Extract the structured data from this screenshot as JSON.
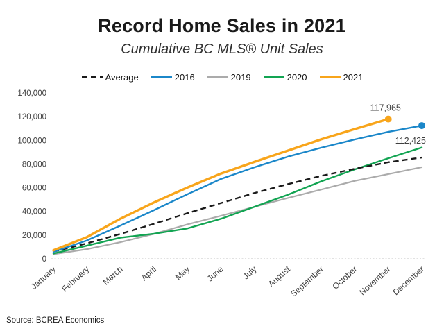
{
  "chart_data": {
    "type": "line",
    "title": "Record Home Sales in 2021",
    "subtitle": "Cumulative BC MLS® Unit Sales",
    "source": "Source: BCREA Economics",
    "xlabel": "",
    "ylabel": "",
    "ylim": [
      0,
      140000
    ],
    "grid": "zero-line-only",
    "legend_position": "top",
    "categories": [
      "January",
      "February",
      "March",
      "April",
      "May",
      "June",
      "July",
      "August",
      "September",
      "October",
      "November",
      "December"
    ],
    "y_ticks": [
      {
        "label": "140,000",
        "value": 140000
      },
      {
        "label": "120,000",
        "value": 120000
      },
      {
        "label": "100,000",
        "value": 100000
      },
      {
        "label": "80,000",
        "value": 80000
      },
      {
        "label": "60,000",
        "value": 60000
      },
      {
        "label": "40,000",
        "value": 40000
      },
      {
        "label": "20,000",
        "value": 20000
      },
      {
        "label": "0",
        "value": 0
      }
    ],
    "series": [
      {
        "name": "Average",
        "color": "#1a1a1a",
        "style": "dashed",
        "width": 2.4,
        "values": [
          6000,
          13000,
          21000,
          29500,
          38500,
          47000,
          55500,
          63000,
          70000,
          76000,
          81500,
          85500
        ]
      },
      {
        "name": "2016",
        "color": "#1b87c9",
        "style": "solid",
        "width": 2.4,
        "values": [
          5831,
          15468,
          28028,
          40997,
          54455,
          67361,
          77261,
          86206,
          93797,
          100741,
          107160,
          112425
        ],
        "end_marker": {
          "label": "112,425",
          "position": "below"
        }
      },
      {
        "name": "2019",
        "color": "#ababab",
        "style": "solid",
        "width": 2.2,
        "values": [
          3829,
          8120,
          14000,
          21000,
          29000,
          36300,
          43800,
          51300,
          58500,
          65800,
          71500,
          77331
        ]
      },
      {
        "name": "2020",
        "color": "#12a452",
        "style": "solid",
        "width": 2.4,
        "values": [
          4426,
          11097,
          17814,
          21098,
          25616,
          33782,
          43872,
          54044,
          65412,
          75512,
          84892,
          93953
        ]
      },
      {
        "name": "2021",
        "color": "#f8a51b",
        "style": "solid",
        "width": 3.4,
        "values": [
          7169,
          18281,
          33844,
          47526,
          60164,
          71928,
          81812,
          91319,
          100912,
          109553,
          117965
        ],
        "end_marker": {
          "label": "117,965",
          "position": "above"
        }
      }
    ]
  }
}
